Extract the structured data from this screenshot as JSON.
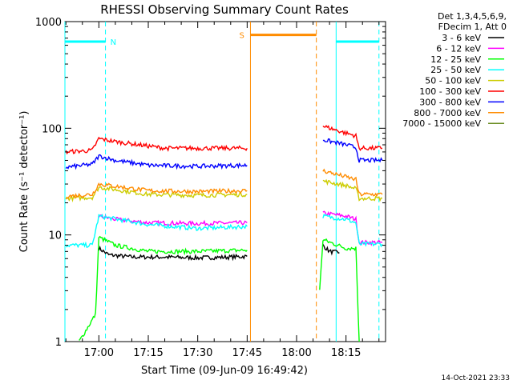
{
  "chart_data": {
    "type": "line",
    "title": "RHESSI Observing Summary Count Rates",
    "xlabel": "Start Time (09-Jun-09 16:49:42)",
    "ylabel": "Count Rate (s⁻¹ detector⁻¹)",
    "yscale": "log",
    "ylim": [
      1,
      1000
    ],
    "y_ticks": [
      "1",
      "10",
      "100",
      "1000"
    ],
    "xlim": [
      "16:49:42",
      "18:27:00"
    ],
    "x_ticks": [
      "17:00",
      "17:15",
      "17:30",
      "17:45",
      "18:00",
      "18:15"
    ],
    "legend_header": [
      "Det 1,3,4,5,6,9,",
      "FDecim 1, Att 0"
    ],
    "legend_position": "top-right",
    "footer_date": "14-Oct-2021 23:33",
    "series": [
      {
        "name": "3 - 6 keV",
        "color": "#000000",
        "segments": [
          [
            [
              "17:00",
              7.5
            ],
            [
              "17:03",
              6.5
            ],
            [
              "17:10",
              6.2
            ],
            [
              "17:20",
              6.2
            ],
            [
              "17:30",
              6.1
            ],
            [
              "17:40",
              6.2
            ],
            [
              "17:45",
              6.3
            ]
          ],
          [
            [
              "18:08",
              8.0
            ],
            [
              "18:10",
              7.0
            ],
            [
              "18:13",
              6.8
            ]
          ]
        ]
      },
      {
        "name": "6 - 12 keV",
        "color": "#ff00ff",
        "segments": [
          [
            [
              "17:00",
              15.0
            ],
            [
              "17:05",
              14.0
            ],
            [
              "17:15",
              13.0
            ],
            [
              "17:30",
              12.8
            ],
            [
              "17:45",
              13.0
            ]
          ],
          [
            [
              "18:08",
              16.0
            ],
            [
              "18:15",
              15.0
            ],
            [
              "18:18",
              14.0
            ],
            [
              "18:19",
              8.5
            ],
            [
              "18:26",
              8.5
            ]
          ]
        ]
      },
      {
        "name": "12 - 25 keV",
        "color": "#00ff00",
        "segments": [
          [
            [
              "16:54",
              1.0
            ],
            [
              "16:59",
              1.8
            ],
            [
              "17:00",
              9.5
            ],
            [
              "17:05",
              8.0
            ],
            [
              "17:15",
              7.0
            ],
            [
              "17:30",
              7.0
            ],
            [
              "17:45",
              7.2
            ]
          ],
          [
            [
              "18:07",
              3.0
            ],
            [
              "18:08",
              9.0
            ],
            [
              "18:15",
              7.5
            ],
            [
              "18:18",
              7.5
            ],
            [
              "18:19",
              1.0
            ]
          ]
        ]
      },
      {
        "name": "25 - 50 keV",
        "color": "#00ffff",
        "segments": [
          [
            [
              "16:50",
              8.0
            ],
            [
              "16:58",
              8.0
            ],
            [
              "17:00",
              15.0
            ],
            [
              "17:15",
              12.5
            ],
            [
              "17:30",
              11.5
            ],
            [
              "17:45",
              12.0
            ]
          ],
          [
            [
              "18:08",
              15.0
            ],
            [
              "18:15",
              14.0
            ],
            [
              "18:18",
              13.0
            ],
            [
              "18:19",
              8.2
            ],
            [
              "18:26",
              8.2
            ]
          ]
        ]
      },
      {
        "name": "50 - 100 keV",
        "color": "#cccc00",
        "segments": [
          [
            [
              "16:50",
              22.0
            ],
            [
              "16:58",
              22.5
            ],
            [
              "17:00",
              28.0
            ],
            [
              "17:15",
              24.0
            ],
            [
              "17:30",
              23.5
            ],
            [
              "17:45",
              24.0
            ]
          ],
          [
            [
              "18:08",
              32.0
            ],
            [
              "18:15",
              29.0
            ],
            [
              "18:18",
              27.0
            ],
            [
              "18:19",
              22.0
            ],
            [
              "18:26",
              22.0
            ]
          ]
        ]
      },
      {
        "name": "100 - 300 keV",
        "color": "#ff0000",
        "segments": [
          [
            [
              "16:50",
              60.0
            ],
            [
              "16:58",
              62.0
            ],
            [
              "17:00",
              80.0
            ],
            [
              "17:05",
              75.0
            ],
            [
              "17:20",
              65.0
            ],
            [
              "17:45",
              65.0
            ]
          ],
          [
            [
              "18:08",
              105.0
            ],
            [
              "18:15",
              90.0
            ],
            [
              "18:18",
              85.0
            ],
            [
              "18:19",
              65.0
            ],
            [
              "18:26",
              65.0
            ]
          ]
        ]
      },
      {
        "name": "300 - 800 keV",
        "color": "#0000ff",
        "segments": [
          [
            [
              "16:50",
              43.0
            ],
            [
              "16:58",
              46.0
            ],
            [
              "17:00",
              55.0
            ],
            [
              "17:05",
              50.0
            ],
            [
              "17:15",
              45.0
            ],
            [
              "17:30",
              44.0
            ],
            [
              "17:45",
              45.0
            ]
          ],
          [
            [
              "18:08",
              78.0
            ],
            [
              "18:15",
              70.0
            ],
            [
              "18:18",
              66.0
            ],
            [
              "18:19",
              50.0
            ],
            [
              "18:26",
              50.0
            ]
          ]
        ]
      },
      {
        "name": "800 - 7000 keV",
        "color": "#ff8c00",
        "segments": [
          [
            [
              "16:50",
              23.0
            ],
            [
              "16:58",
              24.0
            ],
            [
              "17:00",
              30.0
            ],
            [
              "17:15",
              26.0
            ],
            [
              "17:30",
              25.5
            ],
            [
              "17:45",
              26.0
            ]
          ],
          [
            [
              "18:08",
              40.0
            ],
            [
              "18:15",
              35.0
            ],
            [
              "18:18",
              33.0
            ],
            [
              "18:19",
              24.0
            ],
            [
              "18:26",
              24.0
            ]
          ]
        ]
      },
      {
        "name": "7000 - 15000 keV",
        "color": "#6b8e23",
        "segments": []
      }
    ],
    "night_markers": {
      "label": "N",
      "color": "#00ffff",
      "level": 650,
      "solid": [
        "16:49:42",
        "18:12:00"
      ],
      "dashed": [
        "17:02:00",
        "18:25:00"
      ],
      "bars": [
        [
          "16:49:42",
          "17:02:00"
        ],
        [
          "18:12:00",
          "18:25:00"
        ]
      ]
    },
    "saa_markers": {
      "label": "S",
      "color": "#ff8c00",
      "level": 750,
      "solid": [
        "17:46:00"
      ],
      "dashed": [
        "18:06:00"
      ],
      "bars": [
        [
          "17:46:00",
          "18:06:00"
        ]
      ]
    }
  }
}
